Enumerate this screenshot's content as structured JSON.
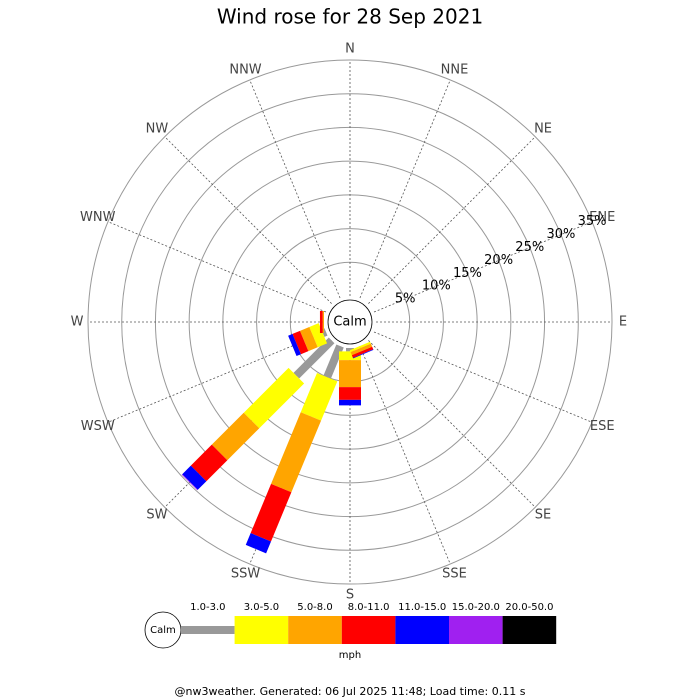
{
  "chart_data": {
    "type": "rose",
    "title": "Wind rose for 28 Sep 2021",
    "categories": [
      "N",
      "NNE",
      "NE",
      "ENE",
      "E",
      "ESE",
      "SE",
      "SSE",
      "S",
      "SSW",
      "SW",
      "WSW",
      "W",
      "WNW",
      "NW",
      "NNW"
    ],
    "series": [
      {
        "name": "1.0-3.0",
        "color": "#999999",
        "values": [
          0,
          0,
          0,
          0,
          0,
          0,
          0,
          0,
          0.5,
          5,
          7.4,
          0.5,
          0,
          0,
          0,
          0
        ]
      },
      {
        "name": "3.0-5.0",
        "color": "#ffff00",
        "values": [
          0,
          0,
          0,
          0,
          0,
          0,
          0,
          0.3,
          1.3,
          6.3,
          9.4,
          1.5,
          0,
          0,
          0,
          0
        ]
      },
      {
        "name": "5.0-8.0",
        "color": "#ffa500",
        "values": [
          0,
          0,
          0,
          0,
          0,
          0,
          0,
          0.5,
          4,
          11.5,
          6.7,
          1.5,
          0.2,
          0,
          0,
          0
        ]
      },
      {
        "name": "8.0-11.0",
        "color": "#ff0000",
        "values": [
          0,
          0,
          0,
          0,
          0,
          0,
          0,
          0.4,
          1.9,
          7.9,
          4.4,
          1.2,
          0.4,
          0,
          0,
          0
        ]
      },
      {
        "name": "11.0-15.0",
        "color": "#0000ff",
        "values": [
          0,
          0,
          0,
          0,
          0,
          0,
          0,
          0.1,
          0.8,
          1.9,
          1.8,
          0.7,
          0,
          0,
          0,
          0
        ]
      },
      {
        "name": "15.0-20.0",
        "color": "#a020f0",
        "values": [
          0,
          0,
          0,
          0,
          0,
          0,
          0,
          0,
          0,
          0,
          0.1,
          0,
          0,
          0,
          0,
          0
        ]
      },
      {
        "name": "20.0-50.0",
        "color": "#000000",
        "values": [
          0,
          0,
          0,
          0,
          0,
          0,
          0,
          0,
          0,
          0,
          0,
          0,
          0,
          0,
          0,
          0
        ]
      }
    ],
    "rlim": [
      0,
      35
    ],
    "rticks": [
      {
        "value": 5,
        "label": "5%"
      },
      {
        "value": 10,
        "label": "10%"
      },
      {
        "value": 15,
        "label": "15%"
      },
      {
        "value": 20,
        "label": "20%"
      },
      {
        "value": 25,
        "label": "25%"
      },
      {
        "value": 30,
        "label": "30%"
      },
      {
        "value": 35,
        "label": "35%"
      }
    ],
    "calm_label": "Calm",
    "units": "mph",
    "footer": "@nw3weather.  Generated: 06 Jul 2025 11:48; Load time: 0.11 s"
  }
}
